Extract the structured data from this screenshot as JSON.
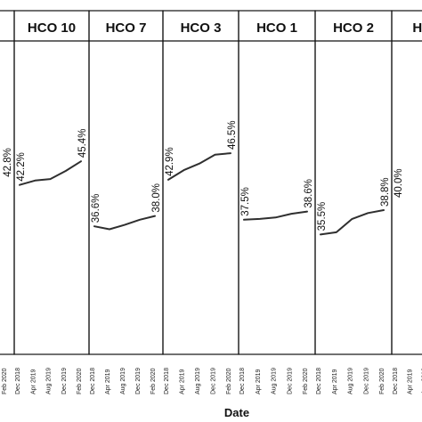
{
  "chart_data": {
    "type": "line",
    "xlabel": "Date",
    "x_ticks": [
      "Dec 2018",
      "Apr 2019",
      "Aug 2019",
      "Dec 2019",
      "Feb 2020"
    ],
    "x_visible_first_panel": [
      "Feb 2020"
    ],
    "y_scale": {
      "min": 20,
      "max": 60,
      "note_unit": "%"
    },
    "legend": "none",
    "grid": false,
    "panels": [
      {
        "title": "",
        "start_label": "",
        "end_label": "42.8%",
        "points": [
          {
            "x": "Feb 2020",
            "y": 42.8
          }
        ]
      },
      {
        "title": "HCO 10",
        "start_label": "42.2%",
        "end_label": "45.4%",
        "points": [
          {
            "x": "Dec 2018",
            "y": 42.2
          },
          {
            "x": "Apr 2019",
            "y": 42.8
          },
          {
            "x": "Aug 2019",
            "y": 43.0
          },
          {
            "x": "Dec 2019",
            "y": 44.1
          },
          {
            "x": "Feb 2020",
            "y": 45.4
          }
        ]
      },
      {
        "title": "HCO 7",
        "start_label": "36.6%",
        "end_label": "38.0%",
        "points": [
          {
            "x": "Dec 2018",
            "y": 36.6
          },
          {
            "x": "Apr 2019",
            "y": 36.2
          },
          {
            "x": "Aug 2019",
            "y": 36.8
          },
          {
            "x": "Dec 2019",
            "y": 37.5
          },
          {
            "x": "Feb 2020",
            "y": 38.0
          }
        ]
      },
      {
        "title": "HCO 3",
        "start_label": "42.9%",
        "end_label": "46.5%",
        "points": [
          {
            "x": "Dec 2018",
            "y": 42.9
          },
          {
            "x": "Apr 2019",
            "y": 44.2
          },
          {
            "x": "Aug 2019",
            "y": 45.1
          },
          {
            "x": "Dec 2019",
            "y": 46.3
          },
          {
            "x": "Feb 2020",
            "y": 46.5
          }
        ]
      },
      {
        "title": "HCO 1",
        "start_label": "37.5%",
        "end_label": "38.6%",
        "points": [
          {
            "x": "Dec 2018",
            "y": 37.5
          },
          {
            "x": "Apr 2019",
            "y": 37.6
          },
          {
            "x": "Aug 2019",
            "y": 37.8
          },
          {
            "x": "Dec 2019",
            "y": 38.3
          },
          {
            "x": "Feb 2020",
            "y": 38.6
          }
        ]
      },
      {
        "title": "HCO 2",
        "start_label": "35.5%",
        "end_label": "38.8%",
        "points": [
          {
            "x": "Dec 2018",
            "y": 35.5
          },
          {
            "x": "Apr 2019",
            "y": 35.8
          },
          {
            "x": "Aug 2019",
            "y": 37.6
          },
          {
            "x": "Dec 2019",
            "y": 38.4
          },
          {
            "x": "Feb 2020",
            "y": 38.8
          }
        ]
      },
      {
        "title": "HCO",
        "start_label": "40.0%",
        "end_label": "",
        "points": [
          {
            "x": "Dec 2018",
            "y": 40.0
          }
        ]
      }
    ]
  }
}
